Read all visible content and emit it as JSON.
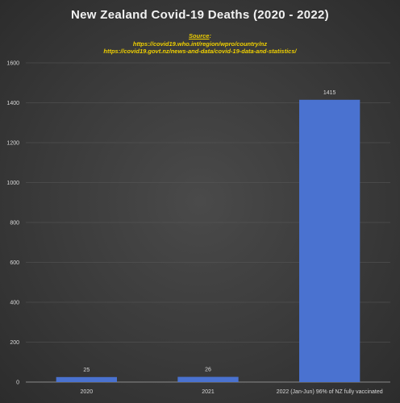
{
  "chart_data": {
    "type": "bar",
    "title": "New Zealand Covid-19 Deaths (2020 - 2022)",
    "source": {
      "label": "Source",
      "lines": [
        "https://covid19.who.int/region/wpro/country/nz",
        "https://covid19.govt.nz/news-and-data/covid-19-data-and-statistics/"
      ]
    },
    "categories": [
      "2020",
      "2021",
      "2022 (Jan-Jun) 96% of NZ fully vaccinated"
    ],
    "values": [
      25,
      26,
      1415
    ],
    "data_labels": [
      "25",
      "26",
      "1415"
    ],
    "ylim": [
      0,
      1600
    ],
    "yticks": [
      0,
      200,
      400,
      600,
      800,
      1000,
      1200,
      1400,
      1600
    ],
    "xlabel": "",
    "ylabel": "",
    "grid": true,
    "bar_color": "#4a72d0",
    "background": "#3a3a3a"
  }
}
